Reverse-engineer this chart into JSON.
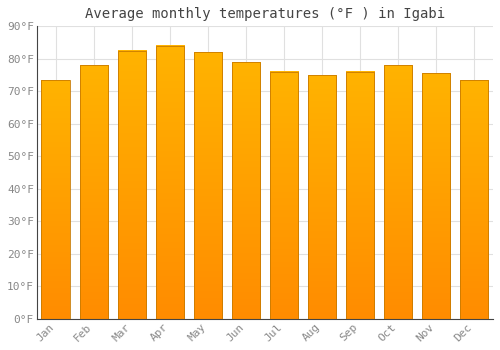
{
  "title": "Average monthly temperatures (°F ) in Igabi",
  "months": [
    "Jan",
    "Feb",
    "Mar",
    "Apr",
    "May",
    "Jun",
    "Jul",
    "Aug",
    "Sep",
    "Oct",
    "Nov",
    "Dec"
  ],
  "values": [
    73.5,
    78.0,
    82.5,
    84.0,
    82.0,
    79.0,
    76.0,
    75.0,
    76.0,
    78.0,
    75.5,
    73.5
  ],
  "bar_color_top": "#FFB300",
  "bar_color_bottom": "#FF8C00",
  "bar_edge_color": "#C97A00",
  "background_color": "#FFFFFF",
  "plot_bg_color": "#FFFFFF",
  "grid_color": "#E0E0E0",
  "ylim": [
    0,
    90
  ],
  "yticks": [
    0,
    10,
    20,
    30,
    40,
    50,
    60,
    70,
    80,
    90
  ],
  "ytick_labels": [
    "0°F",
    "10°F",
    "20°F",
    "30°F",
    "40°F",
    "50°F",
    "60°F",
    "70°F",
    "80°F",
    "90°F"
  ],
  "title_fontsize": 10,
  "tick_fontsize": 8,
  "title_color": "#444444",
  "tick_color": "#888888",
  "spine_color": "#444444",
  "bar_width": 0.75
}
